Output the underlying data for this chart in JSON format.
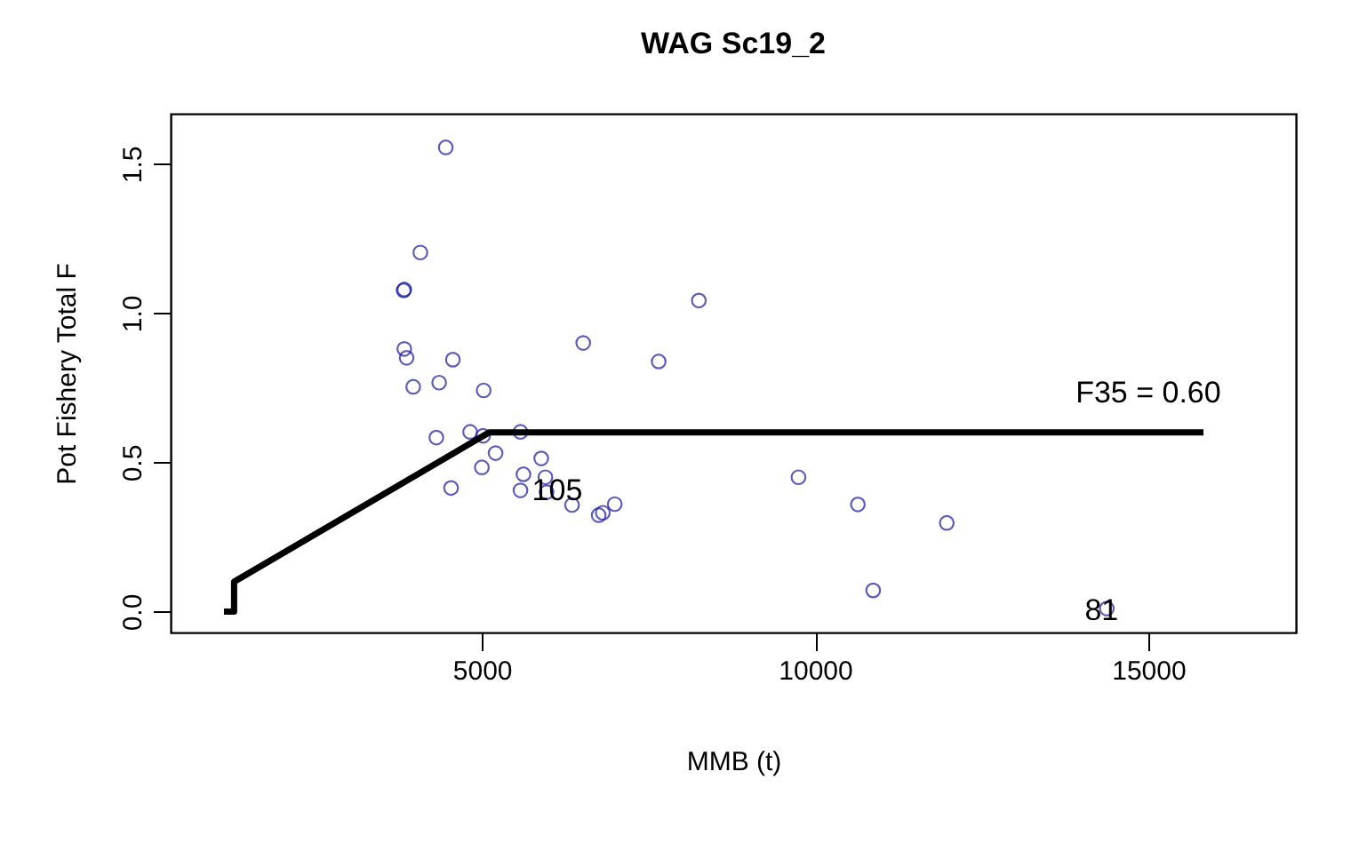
{
  "chart_data": {
    "type": "scatter",
    "title": "WAG Sc19_2",
    "xlabel": "MMB (t)",
    "ylabel": "Pot Fishery Total F",
    "xlim": [
      330,
      17215
    ],
    "ylim": [
      -0.07,
      1.668
    ],
    "xticks": [
      5000,
      10000,
      15000
    ],
    "yticks": [
      {
        "value": 0,
        "label": "0.0"
      },
      {
        "value": 0.5,
        "label": "0.5"
      },
      {
        "value": 1,
        "label": "1.0"
      },
      {
        "value": 1.5,
        "label": "1.5"
      }
    ],
    "grid": false,
    "series": [
      {
        "marker": "circle",
        "color": "#1a1a9c",
        "x": [
          4458,
          4077,
          3826,
          3836,
          8256,
          6521,
          3836,
          3871,
          4565,
          7653,
          3970,
          4359,
          5027,
          4317,
          4824,
          5019,
          5579,
          5206,
          5000,
          4538,
          5891,
          5624,
          5953,
          5579,
          5971,
          6353,
          6753,
          6815,
          6994,
          9751,
          10642,
          11976,
          10872,
          14378
        ],
        "values": [
          1.555,
          1.203,
          1.076,
          1.079,
          1.042,
          0.9,
          0.88,
          0.85,
          0.844,
          0.838,
          0.753,
          0.767,
          0.741,
          0.583,
          0.602,
          0.589,
          0.602,
          0.531,
          0.483,
          0.414,
          0.513,
          0.46,
          0.45,
          0.406,
          0.4,
          0.357,
          0.323,
          0.331,
          0.36,
          0.45,
          0.359,
          0.297,
          0.071,
          0.01
        ]
      },
      {
        "type": "line",
        "color": "#000000",
        "line_style": "solid",
        "x": [
          1130,
          1282,
          1282,
          5107,
          15828
        ],
        "values": [
          0,
          0,
          0.1,
          0.6,
          0.6
        ]
      }
    ],
    "annotations": [
      {
        "text": "F35 = 0.60",
        "x": 15000,
        "y": 0.6
      },
      {
        "text": "105",
        "x": 6131,
        "y": 0.402
      },
      {
        "text": "81",
        "x": 14298,
        "y": 0.0
      }
    ]
  }
}
